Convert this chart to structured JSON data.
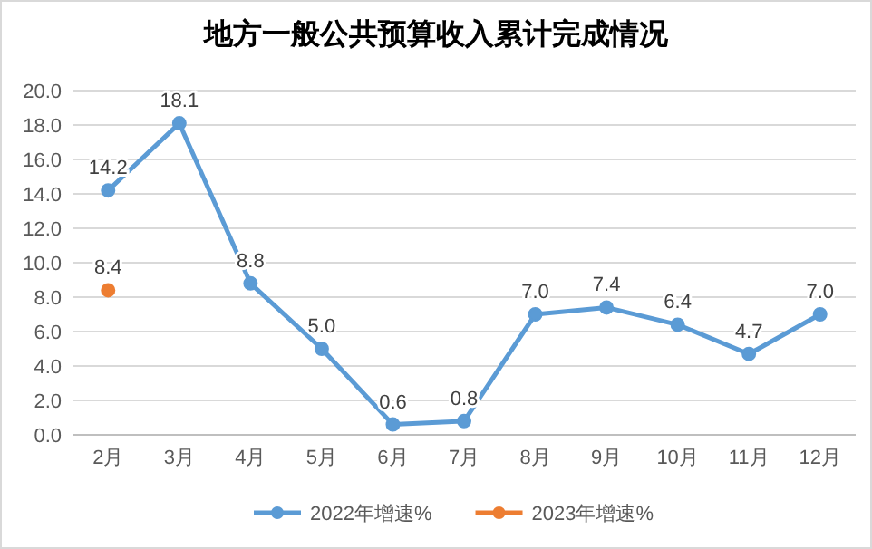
{
  "chart_data": {
    "type": "line",
    "title": "地方一般公共预算收入累计完成情况",
    "categories": [
      "2月",
      "3月",
      "4月",
      "5月",
      "6月",
      "7月",
      "8月",
      "9月",
      "10月",
      "11月",
      "12月"
    ],
    "series": [
      {
        "name": "2022年增速%",
        "color": "#5b9bd5",
        "values": [
          14.2,
          18.1,
          8.8,
          5.0,
          0.6,
          0.8,
          7.0,
          7.4,
          6.4,
          4.7,
          7.0
        ],
        "value_labels": [
          "14.2",
          "18.1",
          "8.8",
          "5.0",
          "0.6",
          "0.8",
          "7.0",
          "7.4",
          "6.4",
          "4.7",
          "7.0"
        ]
      },
      {
        "name": "2023年增速%",
        "color": "#ed7d31",
        "values": [
          8.4,
          null,
          null,
          null,
          null,
          null,
          null,
          null,
          null,
          null,
          null
        ],
        "value_labels": [
          "8.4",
          null,
          null,
          null,
          null,
          null,
          null,
          null,
          null,
          null,
          null
        ]
      }
    ],
    "ylim": [
      0,
      20
    ],
    "yticks": [
      {
        "value": 0,
        "label": "0.0"
      },
      {
        "value": 2,
        "label": "2.0"
      },
      {
        "value": 4,
        "label": "4.0"
      },
      {
        "value": 6,
        "label": "6.0"
      },
      {
        "value": 8,
        "label": "8.0"
      },
      {
        "value": 10,
        "label": "10.0"
      },
      {
        "value": 12,
        "label": "12.0"
      },
      {
        "value": 14,
        "label": "14.0"
      },
      {
        "value": 16,
        "label": "16.0"
      },
      {
        "value": 18,
        "label": "18.0"
      },
      {
        "value": 20,
        "label": "20.0"
      }
    ],
    "grid": "y",
    "legend": "bottom",
    "marker": "circle",
    "line_style": "solid"
  }
}
